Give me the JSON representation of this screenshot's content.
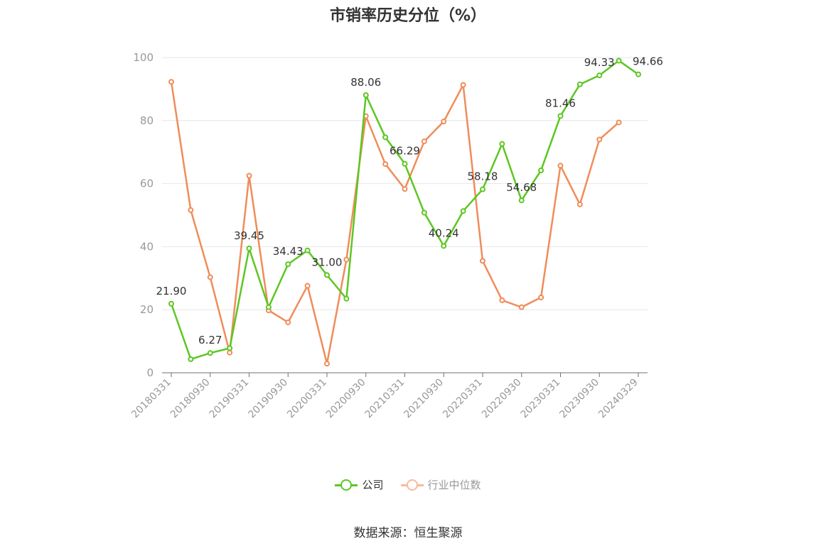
{
  "chart_data": {
    "type": "line",
    "title": "市销率历史分位（%）",
    "ylim": [
      0,
      100
    ],
    "yticks": [
      0,
      20,
      40,
      60,
      80,
      100
    ],
    "grid": true,
    "legend_position": "bottom-center",
    "x": [
      "20180331",
      "20180630",
      "20180930",
      "20181231",
      "20190331",
      "20190630",
      "20190930",
      "20191231",
      "20200331",
      "20200630",
      "20200930",
      "20201231",
      "20210331",
      "20210630",
      "20210930",
      "20211231",
      "20220331",
      "20220630",
      "20220930",
      "20221231",
      "20230331",
      "20230630",
      "20230930",
      "20231231",
      "20240329"
    ],
    "xtick_labels": [
      "20180331",
      "20180930",
      "20190331",
      "20190930",
      "20200331",
      "20200930",
      "20210331",
      "20210930",
      "20220331",
      "20220930",
      "20230331",
      "20230930",
      "20240329"
    ],
    "series": [
      {
        "name": "公司",
        "color": "#5cc722",
        "values": [
          21.9,
          4.3,
          6.27,
          7.8,
          39.45,
          20.8,
          34.43,
          38.8,
          31.0,
          23.5,
          88.06,
          74.7,
          66.29,
          50.8,
          40.24,
          51.3,
          58.18,
          72.6,
          54.68,
          64.2,
          81.46,
          91.5,
          94.33,
          99.0,
          94.66
        ],
        "data_labels": [
          {
            "index": 0,
            "text": "21.90"
          },
          {
            "index": 2,
            "text": "6.27"
          },
          {
            "index": 4,
            "text": "39.45"
          },
          {
            "index": 6,
            "text": "34.43"
          },
          {
            "index": 8,
            "text": "31.00"
          },
          {
            "index": 10,
            "text": "88.06"
          },
          {
            "index": 12,
            "text": "66.29"
          },
          {
            "index": 14,
            "text": "40.24"
          },
          {
            "index": 16,
            "text": "58.18"
          },
          {
            "index": 18,
            "text": "54.68"
          },
          {
            "index": 20,
            "text": "81.46"
          },
          {
            "index": 22,
            "text": "94.33"
          },
          {
            "index": 24,
            "text": "94.66"
          }
        ]
      },
      {
        "name": "行业中位数",
        "color": "#f08c5a",
        "values": [
          92.3,
          51.6,
          30.3,
          6.4,
          62.5,
          19.8,
          16.0,
          27.6,
          2.9,
          35.9,
          81.4,
          66.2,
          58.3,
          73.4,
          79.7,
          91.3,
          35.5,
          23.0,
          20.8,
          23.9,
          65.7,
          53.4,
          74.0,
          79.4,
          null
        ]
      }
    ]
  },
  "legend": {
    "items": [
      {
        "label": "公司",
        "color": "#5cc722",
        "text_color": "#333333"
      },
      {
        "label": "行业中位数",
        "color": "#f8b9a0",
        "text_color": "#999999"
      }
    ]
  },
  "source": "数据来源：恒生聚源"
}
